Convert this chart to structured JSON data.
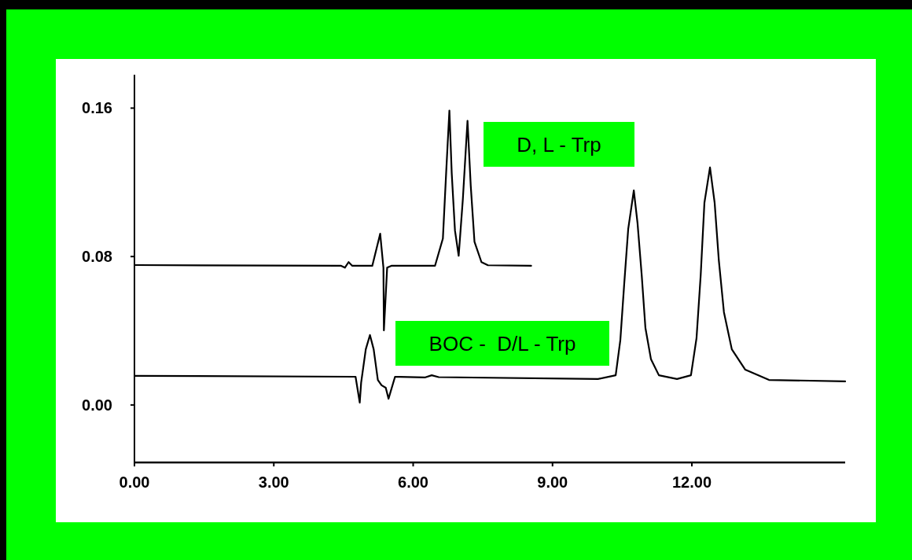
{
  "chart_data": {
    "type": "line",
    "xlim": [
      0,
      15.3
    ],
    "ylim": [
      -0.031,
      0.178
    ],
    "xticks": [
      {
        "value": 0,
        "label": "0.00"
      },
      {
        "value": 3,
        "label": "3.00"
      },
      {
        "value": 6,
        "label": "6.00"
      },
      {
        "value": 9,
        "label": "9.00"
      },
      {
        "value": 12,
        "label": "12.00"
      }
    ],
    "yticks": [
      {
        "value": 0,
        "label": "0.00"
      },
      {
        "value": 0.08,
        "label": "0.08"
      },
      {
        "value": 0.16,
        "label": "0.16"
      }
    ],
    "grid": false,
    "legend": false,
    "marker": "none",
    "line_style": "solid",
    "series": [
      {
        "name": "D, L - Trp",
        "color": "#000000",
        "x": [
          0,
          4.45,
          4.53,
          4.61,
          4.69,
          5.12,
          5.29,
          5.36,
          5.37,
          5.44,
          5.53,
          6.47,
          6.64,
          6.71,
          6.78,
          6.83,
          6.9,
          6.98,
          7.07,
          7.17,
          7.24,
          7.32,
          7.47,
          7.61,
          8.54
        ],
        "values": [
          0.0754,
          0.075,
          0.074,
          0.077,
          0.075,
          0.075,
          0.0923,
          0.074,
          0.0402,
          0.074,
          0.075,
          0.075,
          0.0897,
          0.125,
          0.1587,
          0.125,
          0.094,
          0.0804,
          0.111,
          0.1532,
          0.118,
          0.088,
          0.077,
          0.0753,
          0.075
        ]
      },
      {
        "name": "BOC -  D/L - Trp",
        "color": "#000000",
        "x": [
          0,
          4.76,
          4.85,
          4.88,
          4.98,
          5.07,
          5.15,
          5.24,
          5.32,
          5.41,
          5.47,
          5.61,
          6.25,
          6.4,
          6.55,
          9.98,
          10.36,
          10.46,
          10.54,
          10.63,
          10.75,
          10.83,
          10.92,
          11,
          11.12,
          11.29,
          11.68,
          11.98,
          12.1,
          12.19,
          12.27,
          12.39,
          12.49,
          12.58,
          12.69,
          12.86,
          13.15,
          13.66,
          15.3
        ],
        "values": [
          0.0157,
          0.0152,
          0.0013,
          0.012,
          0.03,
          0.0377,
          0.03,
          0.0135,
          0.0106,
          0.0093,
          0.0034,
          0.0152,
          0.0148,
          0.016,
          0.015,
          0.014,
          0.016,
          0.035,
          0.064,
          0.095,
          0.1156,
          0.098,
          0.07,
          0.0415,
          0.0246,
          0.016,
          0.014,
          0.016,
          0.036,
          0.07,
          0.109,
          0.128,
          0.109,
          0.078,
          0.05,
          0.03,
          0.019,
          0.0135,
          0.0127
        ]
      }
    ]
  }
}
